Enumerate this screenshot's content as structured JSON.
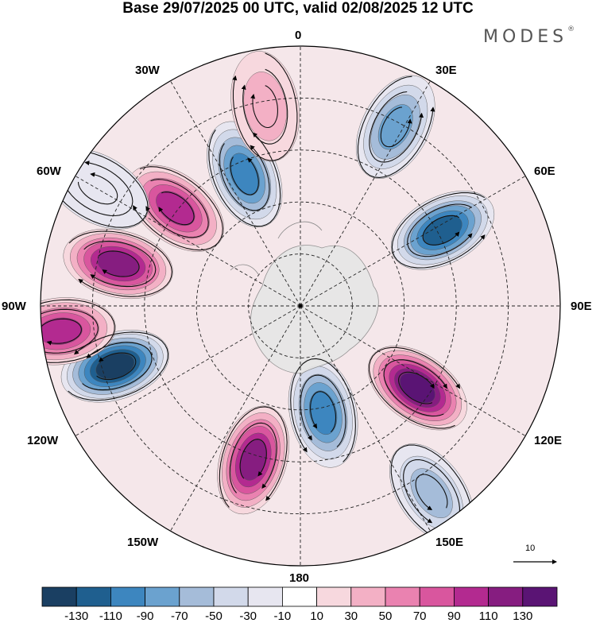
{
  "header": {
    "title": "Base 29/07/2025 00 UTC, valid 02/08/2025 12 UTC"
  },
  "brand": {
    "text": "MODES",
    "mark": "®"
  },
  "longitudes": {
    "n0": "0",
    "n30e": "30E",
    "n60e": "60E",
    "n90e": "90E",
    "n120e": "120E",
    "n150e": "150E",
    "n180": "180",
    "n150w": "150W",
    "n120w": "120W",
    "n90w": "90W",
    "n60w": "60W",
    "n30w": "30W"
  },
  "vector_reference": {
    "value": "10"
  },
  "colorbar": {
    "colors": [
      "#1a3f62",
      "#1f5f8f",
      "#3d86bf",
      "#6ba2cf",
      "#a5bcd9",
      "#d2d9ea",
      "#e7e6f0",
      "#ffffff",
      "#f7d8de",
      "#f3b0c5",
      "#ea82b0",
      "#d9569e",
      "#b32a90",
      "#861d80",
      "#5a1474"
    ],
    "labels": [
      "-130",
      "-110",
      "-90",
      "-70",
      "-50",
      "-30",
      "-10",
      "10",
      "30",
      "50",
      "70",
      "90",
      "110",
      "130"
    ]
  },
  "anomaly_field": [
    {
      "lon_deg": 125,
      "colat_frac": 0.55,
      "value": 130
    },
    {
      "lon_deg": 168,
      "colat_frac": 0.42,
      "value": -100
    },
    {
      "lon_deg": 252,
      "colat_frac": 0.75,
      "value": -140
    },
    {
      "lon_deg": 62,
      "colat_frac": 0.62,
      "value": -110
    },
    {
      "lon_deg": 197,
      "colat_frac": 0.62,
      "value": 115
    },
    {
      "lon_deg": 264,
      "colat_frac": 0.93,
      "value": 95
    },
    {
      "lon_deg": 308,
      "colat_frac": 0.61,
      "value": 100
    },
    {
      "lon_deg": 337,
      "colat_frac": 0.55,
      "value": -100
    },
    {
      "lon_deg": 28,
      "colat_frac": 0.78,
      "value": -70
    },
    {
      "lon_deg": 350,
      "colat_frac": 0.78,
      "value": 40
    },
    {
      "lon_deg": 283,
      "colat_frac": 0.72,
      "value": 120
    },
    {
      "lon_deg": 145,
      "colat_frac": 0.88,
      "value": -50
    },
    {
      "lon_deg": 300,
      "colat_frac": 0.9,
      "value": -25
    }
  ]
}
